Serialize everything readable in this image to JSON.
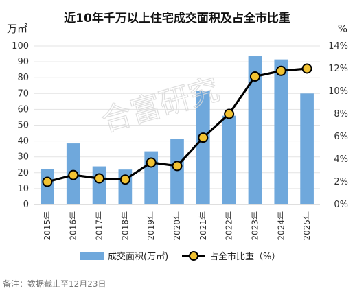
{
  "chart_data": {
    "type": "bar+line",
    "title": "近10年千万以上住宅成交面积及占全市比重",
    "categories": [
      "2015年",
      "2016年",
      "2017年",
      "2018年",
      "2019年",
      "2020年",
      "2021年",
      "2022年",
      "2023年",
      "2024年",
      "2025年"
    ],
    "series": [
      {
        "name": "成交面积(万㎡)",
        "type": "bar",
        "axis": "left",
        "color": "#6fa8dc",
        "values": [
          22.5,
          38.5,
          24,
          22,
          33.5,
          41.5,
          71.5,
          56,
          93.5,
          91.5,
          70
        ]
      },
      {
        "name": "占全市比重（%）",
        "type": "line",
        "axis": "right",
        "color": "#000000",
        "marker_color": "#f1c232",
        "values": [
          2.0,
          2.6,
          2.3,
          2.2,
          3.7,
          3.4,
          5.9,
          8.0,
          11.3,
          11.8,
          12.0
        ]
      }
    ],
    "y_left": {
      "unit": "万㎡",
      "min": 0,
      "max": 100,
      "ticks": [
        "0",
        "10",
        "20",
        "30",
        "40",
        "50",
        "60",
        "70",
        "80",
        "90",
        "100"
      ]
    },
    "y_right": {
      "unit": "%",
      "min": 0,
      "max": 14,
      "ticks": [
        "0%",
        "2%",
        "4%",
        "6%",
        "8%",
        "10%",
        "12%",
        "14%"
      ]
    },
    "grid": true,
    "legend_position": "bottom"
  },
  "note": "备注：数据截止至12月23日",
  "watermark": "合富研究"
}
